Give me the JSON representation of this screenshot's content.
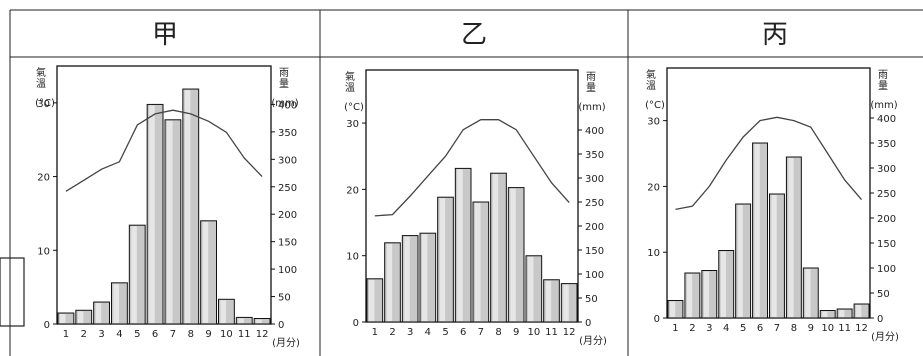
{
  "headers": [
    "甲",
    "乙",
    "丙"
  ],
  "chart_data": [
    {
      "type": "bar",
      "title": "甲",
      "categories": [
        "1",
        "2",
        "3",
        "4",
        "5",
        "6",
        "7",
        "8",
        "9",
        "10",
        "11",
        "12"
      ],
      "x_unit": "(月分)",
      "left_axis": {
        "label": "氣溫",
        "unit": "(°C)",
        "range": [
          0,
          35
        ],
        "ticks": [
          "0",
          "10",
          "20",
          "30"
        ],
        "tick_values": [
          0,
          10,
          20,
          30
        ]
      },
      "right_axis": {
        "label": "雨量",
        "unit": "(mm)",
        "range": [
          0,
          470
        ],
        "ticks": [
          "0",
          "50",
          "100",
          "150",
          "200",
          "250",
          "300",
          "350",
          "400"
        ],
        "tick_values": [
          0,
          50,
          100,
          150,
          200,
          250,
          300,
          350,
          400
        ]
      },
      "series": [
        {
          "kind": "bar",
          "axis": "right",
          "values": [
            20,
            25,
            40,
            75,
            180,
            400,
            372,
            428,
            188,
            45,
            12,
            10
          ]
        },
        {
          "kind": "line",
          "axis": "left",
          "values": [
            18,
            19.5,
            21,
            22,
            27,
            28.5,
            29,
            28.5,
            27.5,
            26,
            22.5,
            20
          ]
        }
      ]
    },
    {
      "type": "bar",
      "title": "乙",
      "categories": [
        "1",
        "2",
        "3",
        "4",
        "5",
        "6",
        "7",
        "8",
        "9",
        "10",
        "11",
        "12"
      ],
      "x_unit": "(月分)",
      "left_axis": {
        "label": "氣溫",
        "unit": "(°C)",
        "range": [
          0,
          38
        ],
        "ticks": [
          "0",
          "10",
          "20",
          "30"
        ],
        "tick_values": [
          0,
          10,
          20,
          30
        ]
      },
      "right_axis": {
        "label": "雨量",
        "unit": "(mm)",
        "range": [
          0,
          525
        ],
        "ticks": [
          "0",
          "50",
          "100",
          "150",
          "200",
          "250",
          "300",
          "350",
          "400"
        ],
        "tick_values": [
          0,
          50,
          100,
          150,
          200,
          250,
          300,
          350,
          400
        ]
      },
      "series": [
        {
          "kind": "bar",
          "axis": "right",
          "values": [
            90,
            165,
            180,
            185,
            260,
            320,
            250,
            310,
            280,
            138,
            88,
            80
          ]
        },
        {
          "kind": "line",
          "axis": "left",
          "values": [
            16,
            16.2,
            19,
            22,
            25,
            29,
            30.5,
            30.5,
            29,
            25,
            21,
            18
          ]
        }
      ]
    },
    {
      "type": "bar",
      "title": "丙",
      "categories": [
        "1",
        "2",
        "3",
        "4",
        "5",
        "6",
        "7",
        "8",
        "9",
        "10",
        "11",
        "12"
      ],
      "x_unit": "(月分)",
      "left_axis": {
        "label": "氣溫",
        "unit": "(°C)",
        "range": [
          0,
          38
        ],
        "ticks": [
          "0",
          "10",
          "20",
          "30"
        ],
        "tick_values": [
          0,
          10,
          20,
          30
        ]
      },
      "right_axis": {
        "label": "雨量",
        "unit": "(mm)",
        "range": [
          0,
          500
        ],
        "ticks": [
          "0",
          "50",
          "100",
          "150",
          "200",
          "250",
          "300",
          "350",
          "400"
        ],
        "tick_values": [
          0,
          50,
          100,
          150,
          200,
          250,
          300,
          350,
          400
        ]
      },
      "series": [
        {
          "kind": "bar",
          "axis": "right",
          "values": [
            35,
            90,
            95,
            135,
            228,
            350,
            248,
            322,
            100,
            15,
            18,
            28
          ]
        },
        {
          "kind": "line",
          "axis": "left",
          "values": [
            16.5,
            17,
            20,
            24,
            27.5,
            30,
            30.5,
            30,
            29,
            25,
            21,
            18
          ]
        }
      ]
    }
  ]
}
